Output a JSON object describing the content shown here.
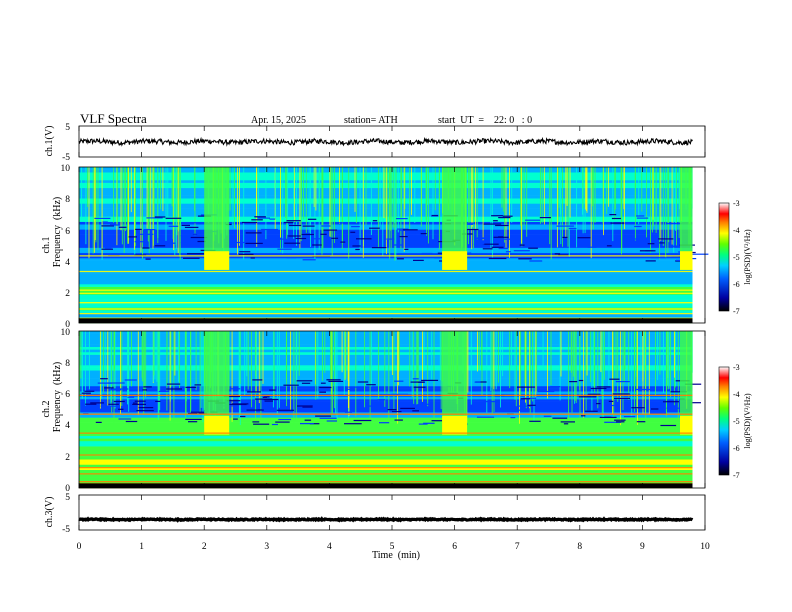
{
  "header": {
    "title": "VLF  Spectra",
    "date": "Apr. 15, 2025",
    "station": "station= ATH",
    "start": "start  UT  =    22: 0   : 0"
  },
  "chart_data": [
    {
      "type": "line",
      "name": "ch1-waveform",
      "ylabel": "ch.1(V)",
      "ylim": [
        -5,
        5
      ],
      "yticks": [
        "5",
        "-5"
      ],
      "xlim": [
        0,
        10
      ],
      "approx_level": -0.1,
      "color": "#000000"
    },
    {
      "type": "heatmap",
      "name": "ch1-spectrogram",
      "ylabel_line1": "ch.1",
      "ylabel_line2": "Frequency  (kHz)",
      "ylim": [
        0,
        10
      ],
      "yticks": [
        "0",
        "2",
        "4",
        "6",
        "8",
        "10"
      ],
      "xlim": [
        0,
        9.8
      ],
      "colorbar": {
        "label": "log(PSD)(V²/Hz)",
        "range": [
          -7,
          -3
        ],
        "ticks": [
          "-3",
          "-4",
          "-5",
          "-6",
          "-7"
        ]
      },
      "bright_bursts_min": [
        2.0,
        5.8,
        9.6
      ]
    },
    {
      "type": "heatmap",
      "name": "ch2-spectrogram",
      "ylabel_line1": "ch.2",
      "ylabel_line2": "Frequency  (kHz)",
      "ylim": [
        0,
        10
      ],
      "yticks": [
        "0",
        "2",
        "4",
        "6",
        "8",
        "10"
      ],
      "xlim": [
        0,
        9.8
      ],
      "colorbar": {
        "label": "log(PSD)(V²/Hz)",
        "range": [
          -7,
          -3
        ],
        "ticks": [
          "-3",
          "-4",
          "-5",
          "-6",
          "-7"
        ]
      },
      "bright_bursts_min": [
        2.0,
        5.8,
        9.6
      ]
    },
    {
      "type": "line",
      "name": "ch3-waveform",
      "ylabel": "ch.3(V)",
      "ylim": [
        -5,
        5
      ],
      "yticks": [
        "5",
        "-5"
      ],
      "xlim": [
        0,
        10
      ],
      "approx_level": -2.0,
      "color": "#000000"
    }
  ],
  "xaxis": {
    "label": "Time  (min)",
    "ticks": [
      "0",
      "1",
      "2",
      "3",
      "4",
      "5",
      "6",
      "7",
      "8",
      "9",
      "10"
    ]
  },
  "colors": {
    "colormap": [
      "#000000",
      "#000090",
      "#0040ff",
      "#00b0ff",
      "#00ffd0",
      "#40ff40",
      "#ffff00",
      "#ff8000",
      "#ff0000",
      "#ffffff"
    ]
  }
}
